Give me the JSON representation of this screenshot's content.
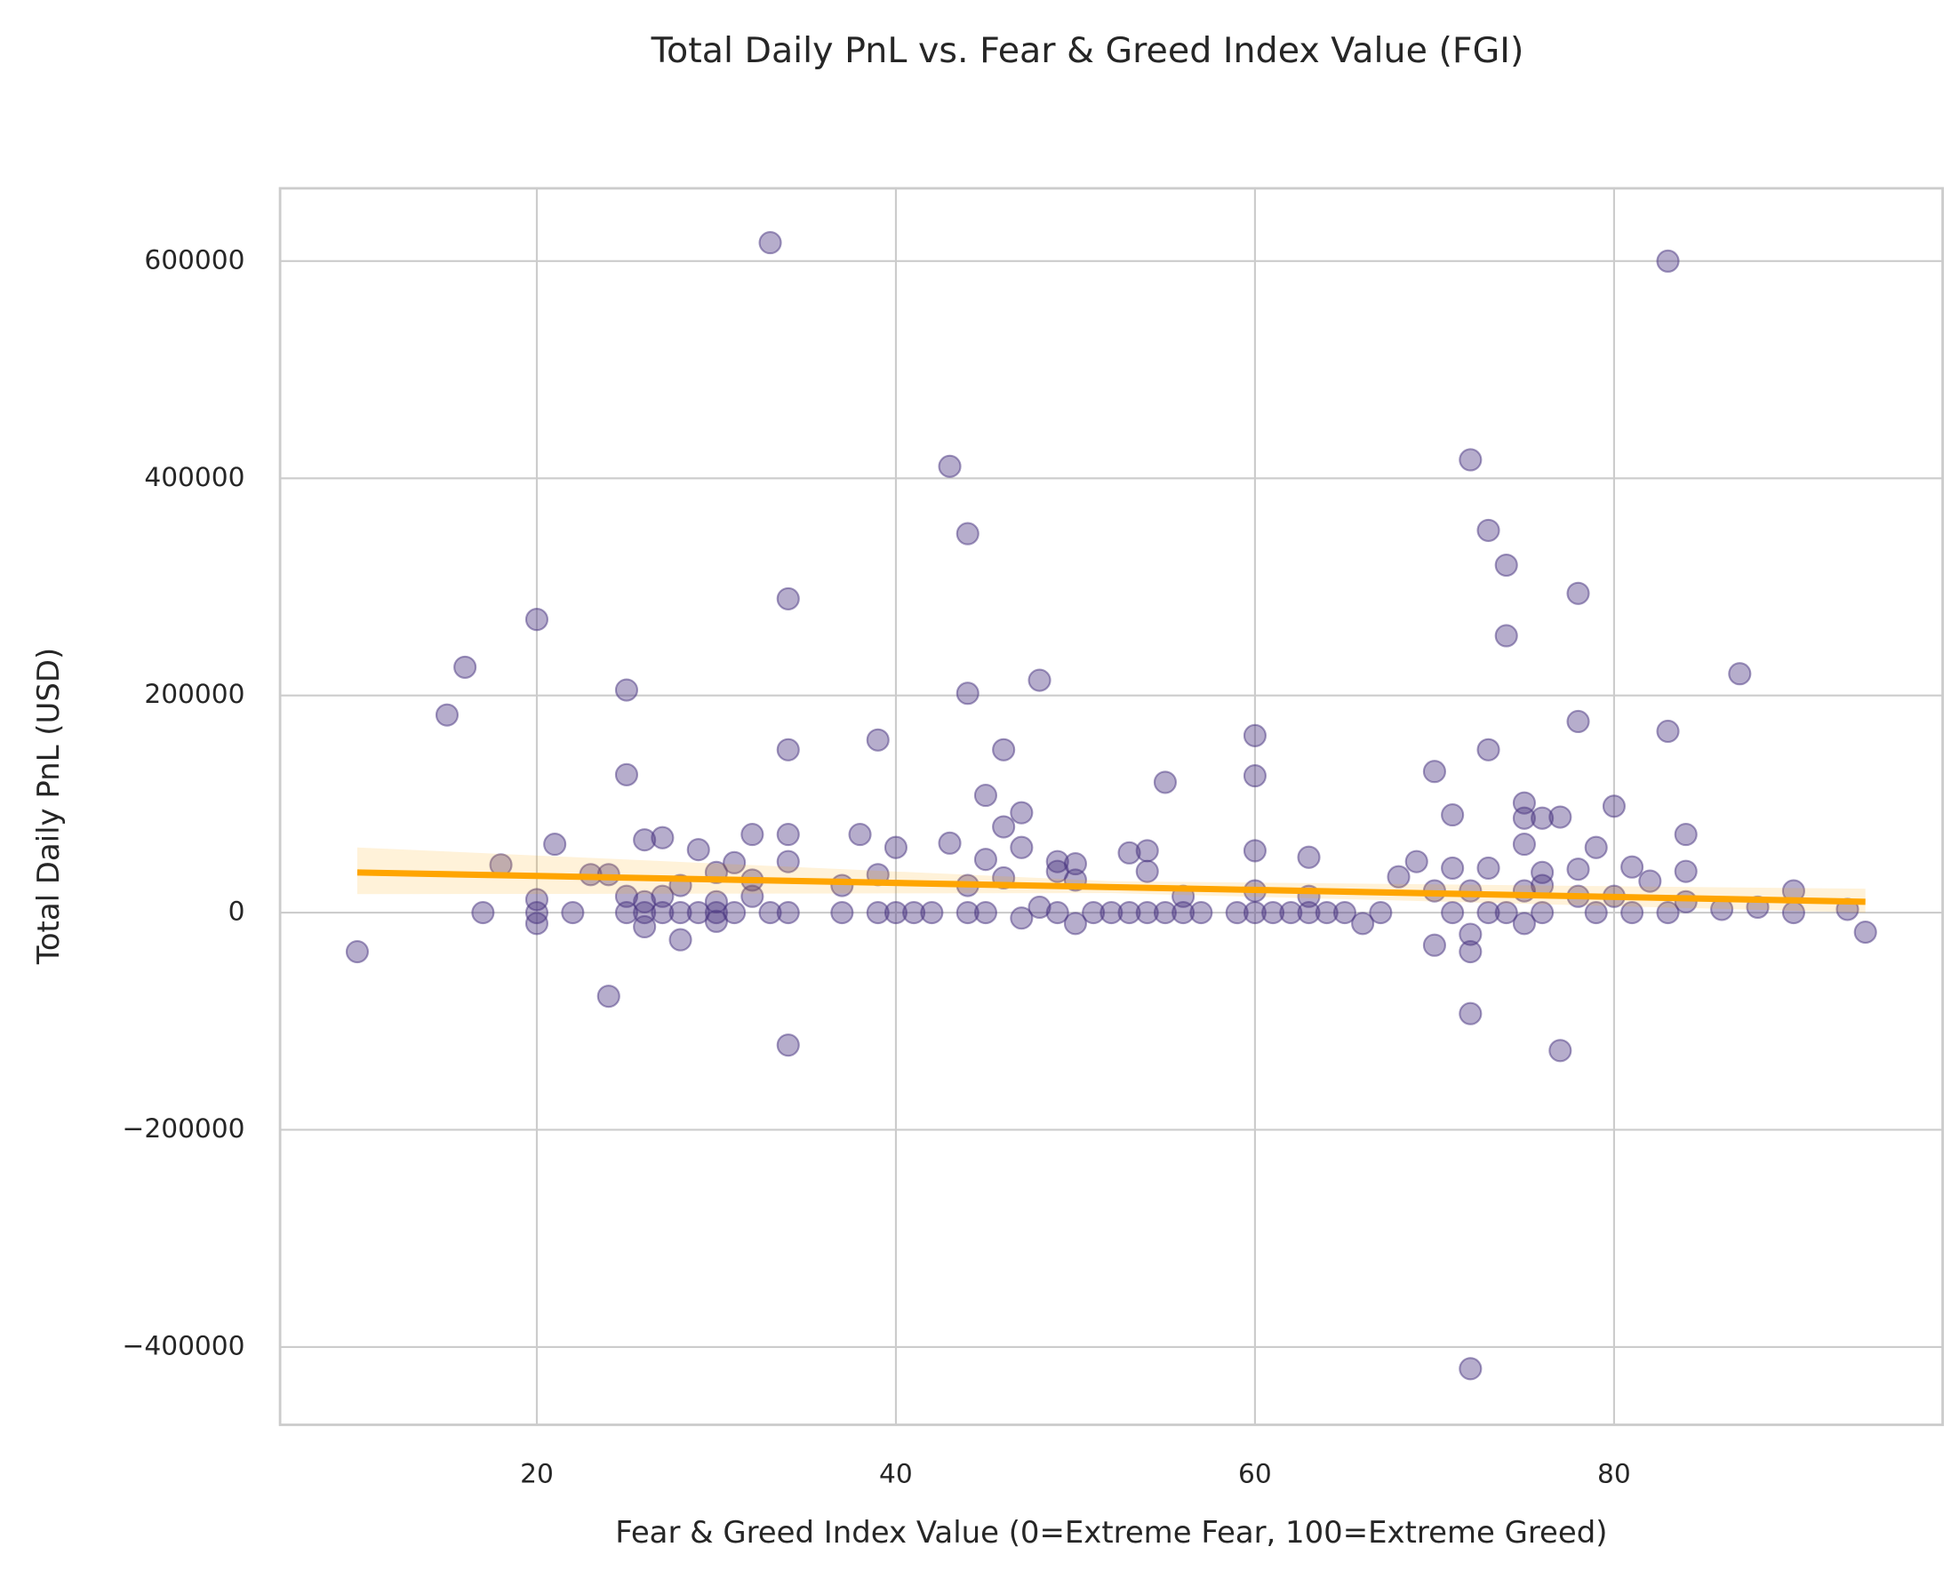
{
  "chart_data": {
    "type": "scatter",
    "title": "Total Daily PnL vs. Fear & Greed Index Value (FGI)",
    "x_label": "Fear & Greed Index Value (0=Extreme Fear, 100=Extreme Greed)",
    "y_label": "Total Daily PnL (USD)",
    "xlim": [
      5.7,
      98.3
    ],
    "ylim": [
      -471676,
      667052
    ],
    "xticks": [
      20,
      40,
      60,
      80
    ],
    "yticks": [
      {
        "value": -400000,
        "label": "−400000"
      },
      {
        "value": -200000,
        "label": "−200000"
      },
      0,
      200000,
      400000,
      600000
    ],
    "grid": true,
    "series": [
      {
        "color": "#48337f",
        "x": [
          10,
          15,
          16,
          17,
          18,
          20,
          20,
          20,
          20,
          21,
          22,
          23,
          24,
          24,
          25,
          25,
          25,
          25,
          26,
          26,
          26,
          26,
          27,
          27,
          27,
          28,
          28,
          28,
          29,
          29,
          30,
          30,
          30,
          30,
          31,
          31,
          32,
          32,
          32,
          33,
          33,
          34,
          34,
          34,
          34,
          34,
          34,
          37,
          37,
          38,
          39,
          39,
          39,
          40,
          40,
          41,
          42,
          43,
          43,
          44,
          44,
          44,
          44,
          45,
          45,
          45,
          46,
          46,
          46,
          47,
          47,
          47,
          48,
          48,
          49,
          49,
          49,
          50,
          50,
          50,
          51,
          52,
          53,
          53,
          54,
          54,
          54,
          55,
          55,
          56,
          56,
          57,
          59,
          60,
          60,
          60,
          60,
          60,
          61,
          62,
          63,
          63,
          63,
          64,
          65,
          66,
          67,
          68,
          69,
          70,
          70,
          70,
          71,
          71,
          71,
          72,
          72,
          72,
          72,
          72,
          72,
          73,
          73,
          73,
          73,
          74,
          74,
          74,
          75,
          75,
          75,
          75,
          75,
          76,
          76,
          76,
          76,
          77,
          77,
          78,
          78,
          78,
          78,
          79,
          79,
          80,
          80,
          81,
          81,
          82,
          83,
          83,
          83,
          84,
          84,
          84,
          86,
          87,
          88,
          90,
          90,
          93,
          94
        ],
        "values": [
          -36000,
          182000,
          226000,
          0,
          44000,
          270000,
          12000,
          0,
          -10000,
          63000,
          0,
          35000,
          35000,
          -77000,
          205000,
          127000,
          15000,
          0,
          67000,
          10000,
          0,
          -13000,
          69000,
          15000,
          0,
          25000,
          0,
          -25000,
          58000,
          0,
          37000,
          10000,
          0,
          -8000,
          46000,
          0,
          72000,
          30000,
          15000,
          617000,
          0,
          289000,
          150000,
          72000,
          47000,
          0,
          -122000,
          25000,
          0,
          72000,
          159000,
          35000,
          0,
          60000,
          0,
          0,
          0,
          411000,
          64000,
          349000,
          202000,
          25000,
          0,
          108000,
          49000,
          0,
          150000,
          79000,
          32000,
          92000,
          60000,
          -5000,
          214000,
          5000,
          47000,
          38000,
          0,
          45000,
          30000,
          -10000,
          0,
          0,
          55000,
          0,
          57000,
          38000,
          0,
          120000,
          0,
          15000,
          0,
          0,
          0,
          163000,
          126000,
          57000,
          20000,
          0,
          0,
          0,
          51000,
          15000,
          0,
          0,
          0,
          -10000,
          0,
          33000,
          47000,
          130000,
          20000,
          -30000,
          90000,
          41000,
          0,
          417000,
          20000,
          -20000,
          -36000,
          -93000,
          -420000,
          352000,
          150000,
          41000,
          0,
          320000,
          255000,
          0,
          101000,
          87000,
          63000,
          20000,
          -10000,
          87000,
          37000,
          25000,
          0,
          88000,
          -127000,
          294000,
          176000,
          40000,
          15000,
          60000,
          0,
          98000,
          15000,
          42000,
          0,
          29000,
          600000,
          167000,
          0,
          72000,
          38000,
          10000,
          3000,
          220000,
          5000,
          20000,
          0,
          3000,
          -18000
        ]
      }
    ],
    "regression": {
      "color": "#ffa500",
      "x": [
        10,
        52,
        94
      ],
      "values": [
        37000,
        23500,
        10000
      ],
      "ci_lower": [
        17000,
        18000,
        0
      ],
      "ci_upper": [
        60000,
        29000,
        22000
      ]
    }
  }
}
